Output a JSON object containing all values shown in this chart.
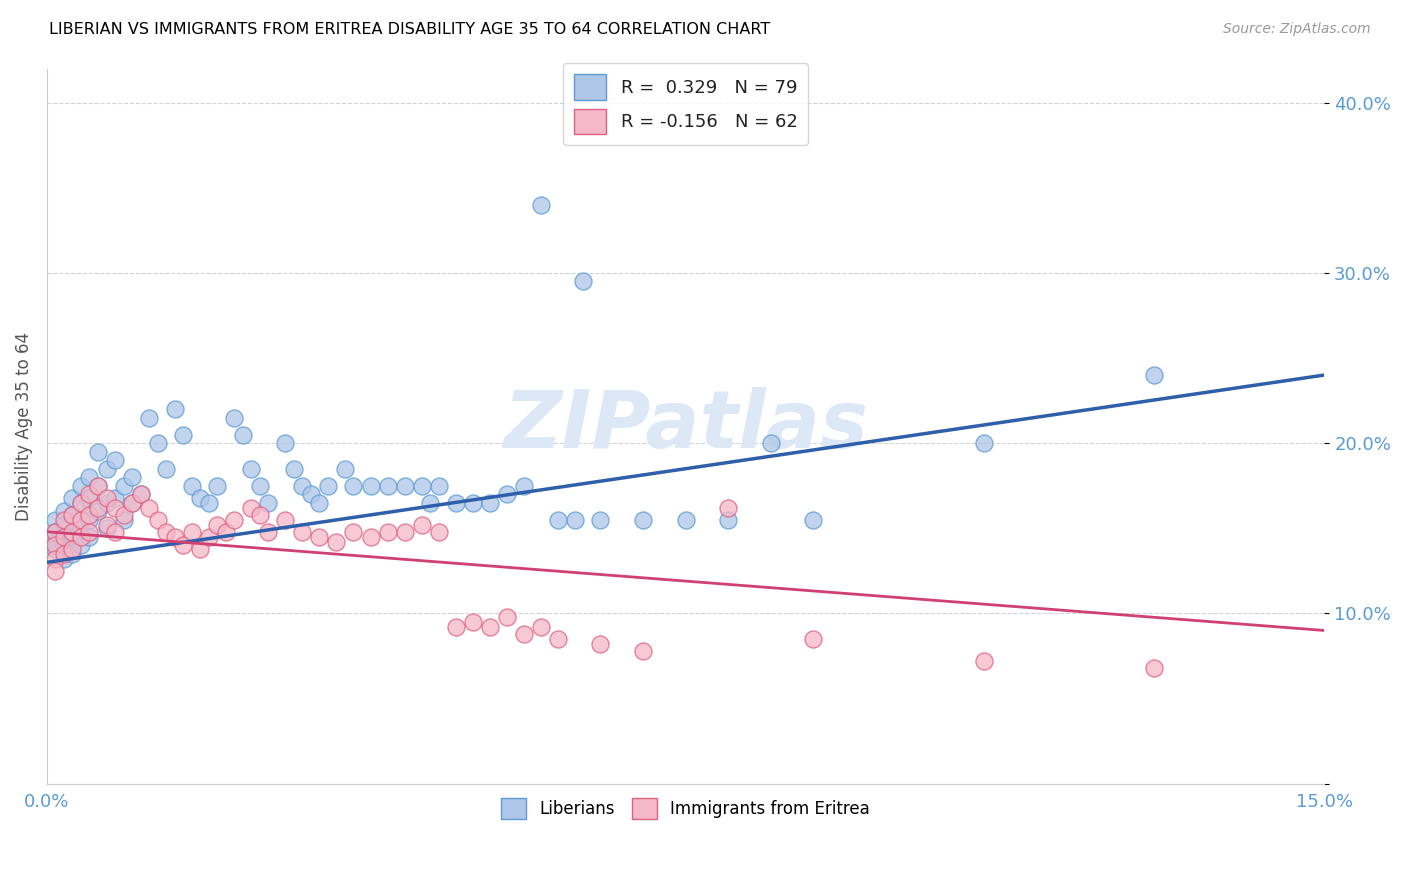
{
  "title": "LIBERIAN VS IMMIGRANTS FROM ERITREA DISABILITY AGE 35 TO 64 CORRELATION CHART",
  "source": "Source: ZipAtlas.com",
  "ylabel": "Disability Age 35 to 64",
  "xmin": 0.0,
  "xmax": 0.15,
  "ymin": 0.0,
  "ymax": 0.42,
  "x_ticks": [
    0.0,
    0.03,
    0.06,
    0.09,
    0.12,
    0.15
  ],
  "x_tick_labels": [
    "0.0%",
    "",
    "",
    "",
    "",
    "15.0%"
  ],
  "y_ticks": [
    0.0,
    0.1,
    0.2,
    0.3,
    0.4
  ],
  "y_tick_labels": [
    "",
    "10.0%",
    "20.0%",
    "30.0%",
    "40.0%"
  ],
  "liberian_x": [
    0.001,
    0.001,
    0.001,
    0.001,
    0.002,
    0.002,
    0.002,
    0.002,
    0.002,
    0.003,
    0.003,
    0.003,
    0.003,
    0.004,
    0.004,
    0.004,
    0.004,
    0.005,
    0.005,
    0.005,
    0.005,
    0.006,
    0.006,
    0.006,
    0.007,
    0.007,
    0.007,
    0.008,
    0.008,
    0.009,
    0.009,
    0.01,
    0.01,
    0.011,
    0.012,
    0.013,
    0.014,
    0.015,
    0.016,
    0.017,
    0.018,
    0.019,
    0.02,
    0.022,
    0.023,
    0.024,
    0.025,
    0.026,
    0.028,
    0.029,
    0.03,
    0.031,
    0.032,
    0.033,
    0.035,
    0.036,
    0.038,
    0.04,
    0.042,
    0.044,
    0.045,
    0.046,
    0.048,
    0.05,
    0.052,
    0.054,
    0.056,
    0.058,
    0.06,
    0.062,
    0.063,
    0.065,
    0.07,
    0.075,
    0.08,
    0.085,
    0.09,
    0.11,
    0.13
  ],
  "liberian_y": [
    0.155,
    0.148,
    0.142,
    0.138,
    0.16,
    0.152,
    0.145,
    0.14,
    0.132,
    0.168,
    0.158,
    0.145,
    0.135,
    0.175,
    0.165,
    0.15,
    0.14,
    0.18,
    0.168,
    0.155,
    0.145,
    0.195,
    0.175,
    0.16,
    0.185,
    0.165,
    0.15,
    0.19,
    0.168,
    0.175,
    0.155,
    0.18,
    0.165,
    0.17,
    0.215,
    0.2,
    0.185,
    0.22,
    0.205,
    0.175,
    0.168,
    0.165,
    0.175,
    0.215,
    0.205,
    0.185,
    0.175,
    0.165,
    0.2,
    0.185,
    0.175,
    0.17,
    0.165,
    0.175,
    0.185,
    0.175,
    0.175,
    0.175,
    0.175,
    0.175,
    0.165,
    0.175,
    0.165,
    0.165,
    0.165,
    0.17,
    0.175,
    0.34,
    0.155,
    0.155,
    0.295,
    0.155,
    0.155,
    0.155,
    0.155,
    0.2,
    0.155,
    0.2,
    0.24
  ],
  "eritrea_x": [
    0.001,
    0.001,
    0.001,
    0.001,
    0.002,
    0.002,
    0.002,
    0.003,
    0.003,
    0.003,
    0.004,
    0.004,
    0.004,
    0.005,
    0.005,
    0.005,
    0.006,
    0.006,
    0.007,
    0.007,
    0.008,
    0.008,
    0.009,
    0.01,
    0.011,
    0.012,
    0.013,
    0.014,
    0.015,
    0.016,
    0.017,
    0.018,
    0.019,
    0.02,
    0.021,
    0.022,
    0.024,
    0.025,
    0.026,
    0.028,
    0.03,
    0.032,
    0.034,
    0.036,
    0.038,
    0.04,
    0.042,
    0.044,
    0.046,
    0.048,
    0.05,
    0.052,
    0.054,
    0.056,
    0.058,
    0.06,
    0.065,
    0.07,
    0.08,
    0.09,
    0.11,
    0.13
  ],
  "eritrea_y": [
    0.148,
    0.14,
    0.132,
    0.125,
    0.155,
    0.145,
    0.135,
    0.158,
    0.148,
    0.138,
    0.165,
    0.155,
    0.145,
    0.17,
    0.158,
    0.148,
    0.175,
    0.162,
    0.168,
    0.152,
    0.162,
    0.148,
    0.158,
    0.165,
    0.17,
    0.162,
    0.155,
    0.148,
    0.145,
    0.14,
    0.148,
    0.138,
    0.145,
    0.152,
    0.148,
    0.155,
    0.162,
    0.158,
    0.148,
    0.155,
    0.148,
    0.145,
    0.142,
    0.148,
    0.145,
    0.148,
    0.148,
    0.152,
    0.148,
    0.092,
    0.095,
    0.092,
    0.098,
    0.088,
    0.092,
    0.085,
    0.082,
    0.078,
    0.162,
    0.085,
    0.072,
    0.068
  ],
  "blue_line_x": [
    0.0,
    0.15
  ],
  "blue_line_y": [
    0.13,
    0.24
  ],
  "pink_line_x": [
    0.0,
    0.15
  ],
  "pink_line_y": [
    0.148,
    0.09
  ],
  "dot_color_liberian": "#aec6e8",
  "dot_edge_liberian": "#5b9bd5",
  "dot_color_eritrea": "#f4b8c8",
  "dot_edge_eritrea": "#e06080",
  "line_color_blue": "#2e5faa",
  "line_color_pink": "#d04070",
  "watermark": "ZIPatlas",
  "watermark_color": "#dce8f5",
  "background_color": "#ffffff",
  "grid_color": "#c8c8c8",
  "title_color": "#000000",
  "tick_label_color": "#5b9bd5",
  "ylabel_color": "#555555"
}
